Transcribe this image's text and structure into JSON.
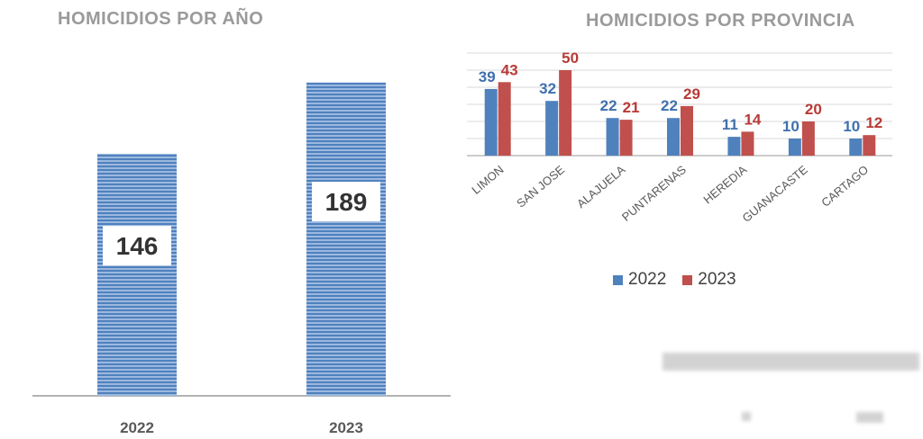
{
  "colors": {
    "blue": "#4f81bd",
    "red": "#c0504d",
    "blue_label": "#3f6fae",
    "red_label": "#b73a36",
    "title": "#9a9a9a",
    "axis": "#9a9a9a",
    "grid": "#d9d9d9",
    "tick": "#595959"
  },
  "chart_data": [
    {
      "type": "bar",
      "title": "HOMICIDIOS POR AÑO",
      "categories": [
        "2022",
        "2023"
      ],
      "values": [
        146,
        189
      ],
      "ylim": [
        0,
        200
      ],
      "grid": false,
      "legend": "none",
      "bar_fill": "horizontal-stripes"
    },
    {
      "type": "bar",
      "title": "HOMICIDIOS POR PROVINCIA",
      "categories": [
        "LIMON",
        "SAN JOSE",
        "ALAJUELA",
        "PUNTARENAS",
        "HEREDIA",
        "GUANACASTE",
        "CARTAGO"
      ],
      "series": [
        {
          "name": "2022",
          "values": [
            39,
            32,
            22,
            22,
            11,
            10,
            10
          ]
        },
        {
          "name": "2023",
          "values": [
            43,
            50,
            21,
            29,
            14,
            20,
            12
          ]
        }
      ],
      "ylim": [
        0,
        60
      ],
      "grid": true,
      "legend": "bottom"
    }
  ]
}
